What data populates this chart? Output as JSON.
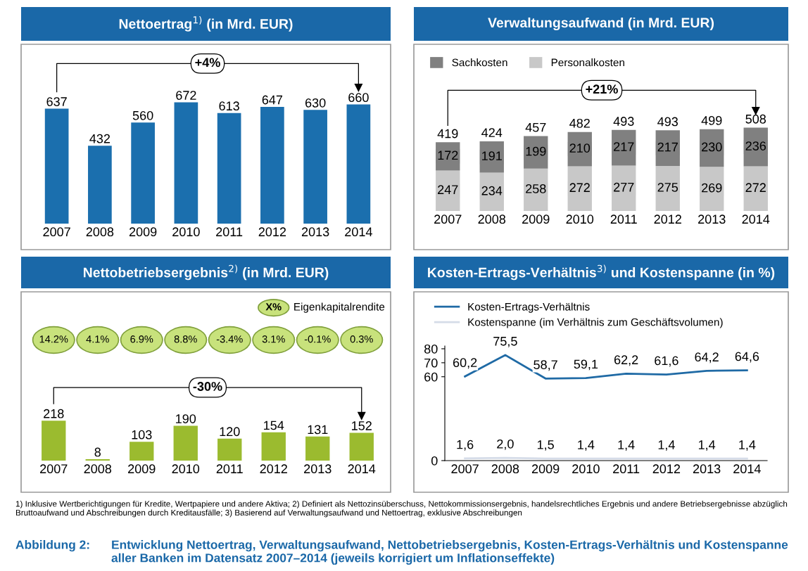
{
  "chart_data": [
    {
      "type": "bar",
      "title": "Nettoertrag$^{1)}$ (in Mrd. EUR)",
      "categories": [
        "2007",
        "2008",
        "2009",
        "2010",
        "2011",
        "2012",
        "2013",
        "2014"
      ],
      "series": [
        {
          "color": "#1b6fae",
          "values": [
            637,
            432,
            560,
            672,
            613,
            647,
            630,
            660
          ]
        }
      ],
      "data_labels": true,
      "annotations": [
        "+4%"
      ]
    },
    {
      "type": "bar",
      "title": "Verwaltungsaufwand (in Mrd. EUR)",
      "categories": [
        "2007",
        "2008",
        "2009",
        "2010",
        "2011",
        "2012",
        "2013",
        "2014"
      ],
      "stacked": true,
      "series": [
        {
          "name": "Personalkosten",
          "color": "#c8c8c8",
          "values": [
            247,
            234,
            258,
            272,
            277,
            275,
            269,
            272
          ]
        },
        {
          "name": "Sachkosten",
          "color": "#808080",
          "values": [
            172,
            191,
            199,
            210,
            217,
            217,
            230,
            236
          ]
        }
      ],
      "totals": [
        "419",
        "424",
        "457",
        "482",
        "493",
        "493",
        "499",
        "508"
      ],
      "data_labels": true,
      "legend": "top left",
      "annotations": [
        "+21%"
      ]
    },
    {
      "type": "other",
      "title": "Nettobetriebsergebnis$^{2)}$ (in Mrd. EUR)",
      "categories": [
        null,
        null,
        null,
        null,
        null,
        null,
        null,
        null
      ],
      "series": [
        {
          "name": "Eigenkapitalrendite",
          "color": "#c8e27c",
          "values": [
            14.2,
            4.1,
            6.9,
            8.8,
            -3.4,
            3.1,
            -0.1,
            0.3
          ],
          "value_labels": [
            "14.2%",
            "4.1%",
            "6.9%",
            "8.8%",
            "-3.4%",
            "3.1%",
            "-0.1%",
            "0.3%"
          ]
        }
      ],
      "legend": "top right",
      "annotations": [
        "X%"
      ]
    },
    {
      "type": "bar",
      "categories": [
        "2007",
        "2008",
        "2009",
        "2010",
        "2011",
        "2012",
        "2013",
        "2014"
      ],
      "series": [
        {
          "color": "#9bbb2f",
          "values": [
            218,
            8,
            103,
            190,
            120,
            154,
            131,
            152
          ]
        }
      ],
      "data_labels": true,
      "annotations": [
        "-30%"
      ]
    },
    {
      "type": "line",
      "title": "Kosten-Ertrags-Verhältnis$^{3)}$ und Kostenspanne (in %)",
      "categories": [
        "2007",
        "2008",
        "2009",
        "2010",
        "2011",
        "2012",
        "2013",
        "2014"
      ],
      "series": [
        {
          "name": "Kosten-Ertrags-Verhältnis",
          "color": "#1f6aa5",
          "values": [
            60.2,
            75.5,
            58.7,
            59.1,
            62.2,
            61.6,
            64.2,
            64.6
          ],
          "value_labels": [
            "60,2",
            "75,5",
            "58,7",
            "59,1",
            "62,2",
            "61,6",
            "64,2",
            "64,6"
          ]
        },
        {
          "name": "Kostenspanne (im Verhältnis zum Geschäftsvolumen)",
          "color": "#d5dce8",
          "values": [
            1.6,
            2.0,
            1.5,
            1.4,
            1.4,
            1.4,
            1.4,
            1.4
          ],
          "value_labels": [
            "1,6",
            "2,0",
            "1,5",
            "1,4",
            "1,4",
            "1,4",
            "1,4",
            "1,4"
          ]
        }
      ],
      "ylim": [
        0,
        82
      ],
      "yticks": [
        0,
        60,
        70,
        80
      ],
      "legend": "top left",
      "annotations": [
        "1) Inklusive Wertberichtigungen für Kredite, Wertpapiere und andere Aktiva; 2) Definiert als Nettozinsüberschuss, Nettokommissionsergebnis, handelsrechtliches Ergebnis und andere Betriebsergebnisse abzüglich Bruttoaufwand und Abschreibungen durch Kreditausfälle; 3) Basierend auf Verwaltungsaufwand und Nettoertrag, exklusive Abschreibungen",
        "Abbildung 2:",
        "Entwicklung Nettoertrag, Verwaltungsaufwand, Nettobetriebsergebnis, Kosten-Ertrags-Verhältnis und Kostenspanne aller Banken im Datensatz 2007–2014 (jeweils korrigiert um Inflationseffekte)"
      ]
    }
  ]
}
